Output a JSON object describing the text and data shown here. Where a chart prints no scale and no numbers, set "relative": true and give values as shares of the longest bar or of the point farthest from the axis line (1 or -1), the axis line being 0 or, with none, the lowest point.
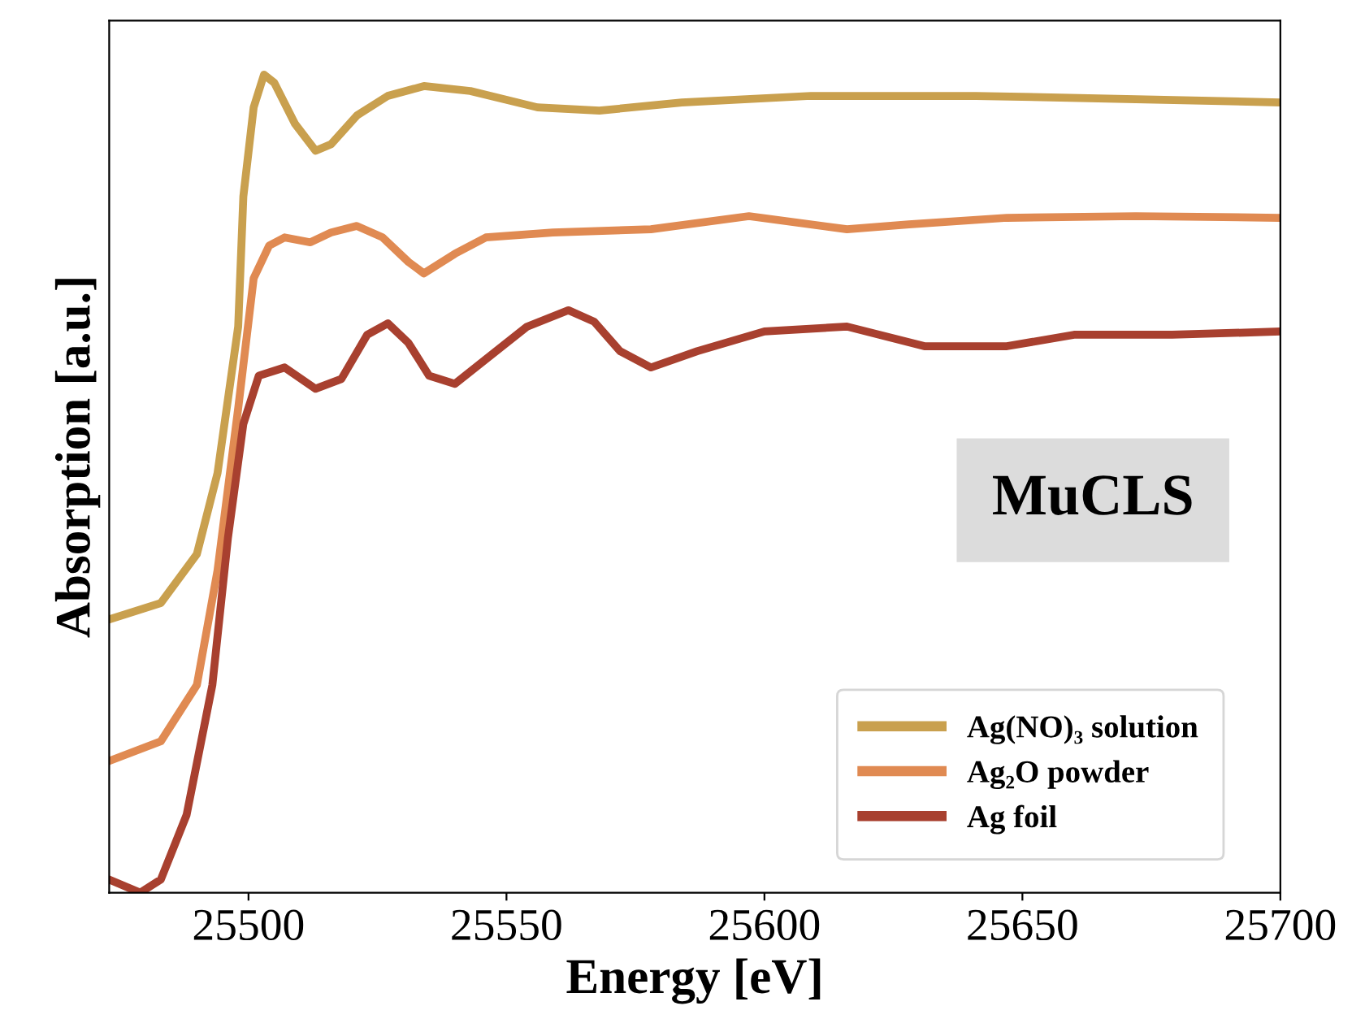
{
  "chart_data": {
    "type": "line",
    "relative": true,
    "xlabel": "Energy [eV]",
    "ylabel": "Absorption [a.u.]",
    "xlim": [
      25473,
      25700
    ],
    "xticks": [
      25500,
      25550,
      25600,
      25650,
      25700
    ],
    "legend": "bottom right",
    "grid": false,
    "marker": "none",
    "line_style": "solid",
    "annotations": [
      "MuCLS"
    ],
    "series": [
      {
        "name": "Ag(NO)₃ solution",
        "color": "#c9a04e",
        "x": [
          25473,
          25483,
          25490,
          25494,
          25498,
          25499,
          25501,
          25503,
          25505,
          25509,
          25513,
          25516,
          25521,
          25527,
          25534,
          25543,
          25556,
          25568,
          25584,
          25609,
          25641,
          25672,
          25700
        ],
        "values": [
          0.334,
          0.354,
          0.414,
          0.513,
          0.692,
          0.851,
          0.96,
          1.0,
          0.99,
          0.94,
          0.907,
          0.915,
          0.95,
          0.974,
          0.986,
          0.98,
          0.96,
          0.956,
          0.966,
          0.974,
          0.974,
          0.97,
          0.966
        ]
      },
      {
        "name": "Ag₂O powder",
        "color": "#e08a52",
        "x": [
          25473,
          25483,
          25490,
          25494,
          25498,
          25501,
          25504,
          25507,
          25512,
          25516,
          25521,
          25526,
          25531,
          25534,
          25540,
          25546,
          25559,
          25578,
          25597,
          25616,
          25628,
          25647,
          25672,
          25700
        ],
        "values": [
          0.161,
          0.185,
          0.254,
          0.394,
          0.592,
          0.751,
          0.791,
          0.801,
          0.795,
          0.807,
          0.815,
          0.801,
          0.771,
          0.757,
          0.781,
          0.801,
          0.807,
          0.811,
          0.827,
          0.811,
          0.817,
          0.825,
          0.827,
          0.825
        ]
      },
      {
        "name": "Ag foil",
        "color": "#a8402f",
        "x": [
          25473,
          25479,
          25483,
          25488,
          25493,
          25496,
          25499,
          25502,
          25507,
          25513,
          25518,
          25523,
          25527,
          25531,
          25535,
          25540,
          25546,
          25554,
          25562,
          25567,
          25572,
          25578,
          25587,
          25600,
          25616,
          25631,
          25647,
          25660,
          25679,
          25700
        ],
        "values": [
          0.016,
          0.0,
          0.016,
          0.095,
          0.254,
          0.433,
          0.573,
          0.632,
          0.642,
          0.616,
          0.628,
          0.682,
          0.696,
          0.672,
          0.632,
          0.622,
          0.652,
          0.692,
          0.712,
          0.698,
          0.662,
          0.642,
          0.662,
          0.686,
          0.692,
          0.668,
          0.668,
          0.682,
          0.682,
          0.686
        ]
      }
    ]
  }
}
